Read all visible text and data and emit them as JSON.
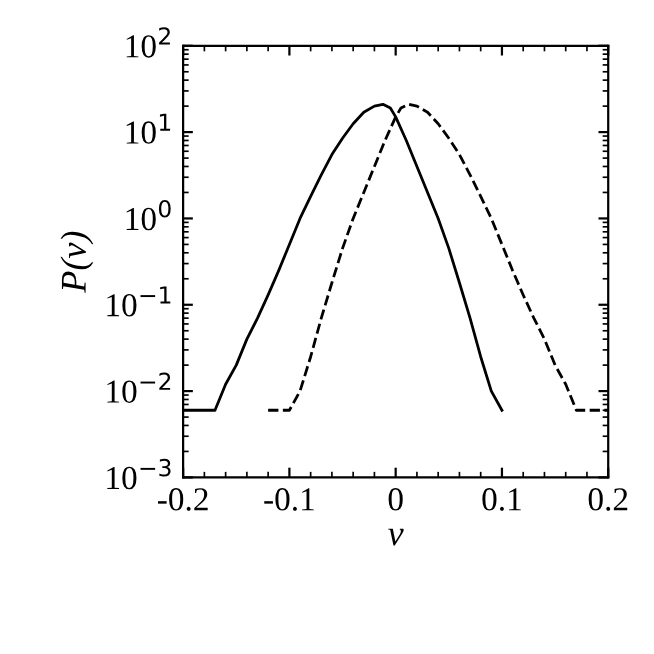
{
  "chart_data": {
    "type": "line",
    "xlabel": "v",
    "ylabel": "P(v)",
    "log": "y",
    "xlim": [
      -0.2,
      0.2
    ],
    "xticks": [
      -0.2,
      -0.1,
      0,
      0.1,
      0.2
    ],
    "ylim": [
      0.001,
      100
    ],
    "yticks": [
      {
        "value": 0.001,
        "label": "10$^{−3}$"
      },
      {
        "value": 0.01,
        "label": "10$^{−2}$"
      },
      {
        "value": 0.1,
        "label": "10$^{−1}$"
      },
      {
        "value": 1,
        "label": "10$^{0}$"
      },
      {
        "value": 10,
        "label": "10$^{1}$"
      },
      {
        "value": 100,
        "label": "10$^{2}$"
      }
    ],
    "grid": false,
    "legend": false,
    "series": [
      {
        "color": "#000000",
        "line_style": "solid",
        "x": [
          -0.2,
          -0.17,
          -0.16,
          -0.15,
          -0.14,
          -0.13,
          -0.12,
          -0.11,
          -0.1,
          -0.09,
          -0.08,
          -0.07,
          -0.06,
          -0.05,
          -0.04,
          -0.03,
          -0.02,
          -0.012,
          -0.005,
          0,
          0.01,
          0.02,
          0.03,
          0.04,
          0.05,
          0.06,
          0.07,
          0.08,
          0.09,
          0.1
        ],
        "values": [
          0.006,
          0.006,
          0.012,
          0.02,
          0.04,
          0.07,
          0.13,
          0.25,
          0.5,
          1.0,
          1.8,
          3.2,
          5.5,
          8.5,
          12.5,
          17,
          20,
          21,
          19,
          15,
          8,
          4,
          2,
          1.0,
          0.45,
          0.18,
          0.07,
          0.025,
          0.01,
          0.006
        ]
      },
      {
        "color": "#000000",
        "line_style": "dashed",
        "x": [
          -0.12,
          -0.1,
          -0.09,
          -0.08,
          -0.07,
          -0.06,
          -0.05,
          -0.04,
          -0.03,
          -0.02,
          -0.01,
          0,
          0.005,
          0.012,
          0.02,
          0.03,
          0.04,
          0.05,
          0.06,
          0.07,
          0.08,
          0.09,
          0.1,
          0.11,
          0.12,
          0.13,
          0.14,
          0.15,
          0.16,
          0.17,
          0.2
        ],
        "values": [
          0.006,
          0.006,
          0.01,
          0.025,
          0.07,
          0.18,
          0.45,
          1.0,
          2,
          4,
          8,
          15,
          19,
          21,
          20,
          17,
          12.5,
          8.5,
          5.5,
          3.2,
          1.8,
          1.0,
          0.5,
          0.25,
          0.13,
          0.07,
          0.04,
          0.02,
          0.012,
          0.006,
          0.006
        ]
      }
    ]
  }
}
